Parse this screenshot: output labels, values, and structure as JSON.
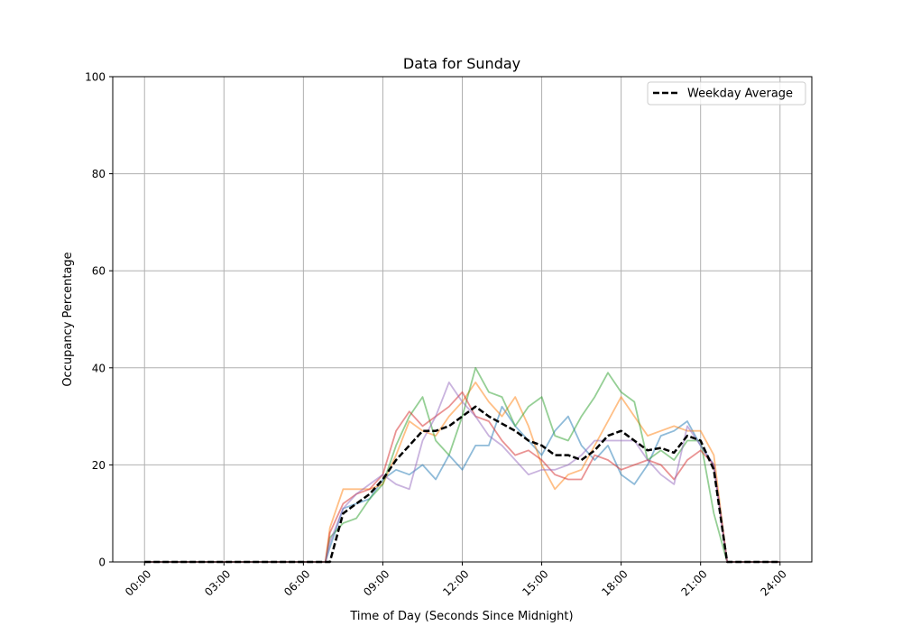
{
  "chart_data": {
    "type": "line",
    "title": "Data for Sunday",
    "xlabel": "Time of Day (Seconds Since Midnight)",
    "ylabel": "Occupancy Percentage",
    "xlim": [
      "00:00",
      "24:00"
    ],
    "ylim": [
      0,
      100
    ],
    "xticks": [
      "00:00",
      "03:00",
      "06:00",
      "09:00",
      "12:00",
      "15:00",
      "18:00",
      "21:00",
      "24:00"
    ],
    "yticks": [
      0,
      20,
      40,
      60,
      80,
      100
    ],
    "grid": true,
    "legend_placement": "top-right",
    "x": [
      "00:00",
      "06:50",
      "07:00",
      "07:30",
      "08:00",
      "08:30",
      "09:00",
      "09:30",
      "10:00",
      "10:30",
      "11:00",
      "11:30",
      "12:00",
      "12:30",
      "13:00",
      "13:30",
      "14:00",
      "14:30",
      "15:00",
      "15:30",
      "16:00",
      "16:30",
      "17:00",
      "17:30",
      "18:00",
      "18:30",
      "19:00",
      "19:30",
      "20:00",
      "20:30",
      "21:00",
      "21:30",
      "22:00",
      "24:00"
    ],
    "series": [
      {
        "color": "#1f77b4",
        "values": [
          0,
          0,
          3,
          11,
          12,
          13,
          17,
          19,
          18,
          20,
          17,
          22,
          19,
          24,
          24,
          32,
          28,
          25,
          22,
          27,
          30,
          24,
          21,
          24,
          18,
          16,
          20,
          26,
          27,
          29,
          24,
          20,
          0,
          0
        ]
      },
      {
        "color": "#ff7f0e",
        "values": [
          0,
          0,
          7,
          15,
          15,
          15,
          16,
          22,
          29,
          27,
          26,
          30,
          33,
          37,
          33,
          30,
          34,
          28,
          20,
          15,
          18,
          19,
          24,
          29,
          34,
          30,
          26,
          27,
          28,
          27,
          27,
          22,
          0,
          0
        ]
      },
      {
        "color": "#2ca02c",
        "values": [
          0,
          0,
          5,
          8,
          9,
          13,
          16,
          24,
          30,
          34,
          25,
          22,
          30,
          40,
          35,
          34,
          28,
          32,
          34,
          26,
          25,
          30,
          34,
          39,
          35,
          33,
          21,
          23,
          21,
          25,
          25,
          10,
          0,
          0
        ]
      },
      {
        "color": "#d62728",
        "values": [
          0,
          0,
          6,
          12,
          14,
          15,
          18,
          27,
          31,
          28,
          30,
          32,
          35,
          30,
          29,
          25,
          22,
          23,
          21,
          18,
          17,
          17,
          22,
          21,
          19,
          20,
          21,
          20,
          17,
          21,
          23,
          20,
          0,
          0
        ]
      },
      {
        "color": "#9467bd",
        "values": [
          0,
          0,
          4,
          11,
          14,
          16,
          18,
          16,
          15,
          25,
          30,
          37,
          33,
          30,
          26,
          24,
          21,
          18,
          19,
          19,
          20,
          22,
          25,
          25,
          25,
          25,
          21,
          18,
          16,
          28,
          24,
          20,
          0,
          0
        ]
      },
      {
        "name": "Weekday Average",
        "color": "#000000",
        "dashed": true,
        "values": [
          0,
          0,
          0,
          10,
          12,
          14,
          17,
          21,
          24,
          27,
          27,
          28,
          30,
          32,
          30,
          28.5,
          27,
          25,
          24,
          22,
          22,
          21,
          23,
          26,
          27,
          25,
          23,
          23.5,
          22.5,
          26,
          25,
          19,
          0,
          0
        ]
      }
    ]
  }
}
